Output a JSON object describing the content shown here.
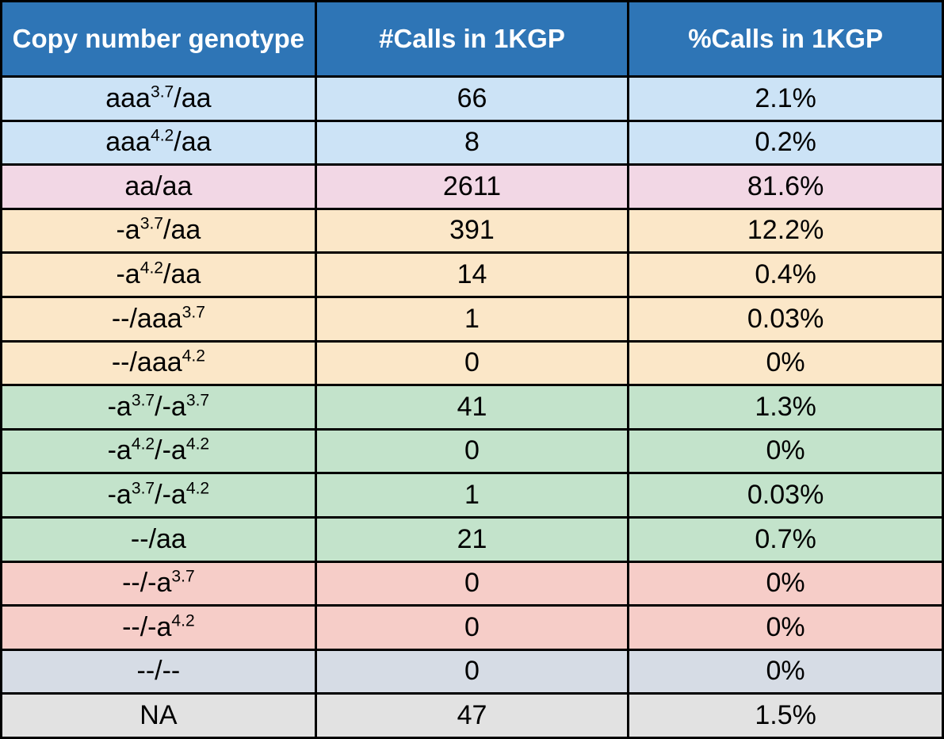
{
  "table": {
    "columns": [
      {
        "label": "Copy number genotype"
      },
      {
        "label": "#Calls in 1KGP"
      },
      {
        "label": "%Calls in 1KGP"
      }
    ],
    "header_bg": "#2E75B6",
    "header_text_color": "#FFFFFF",
    "border_color": "#000000",
    "row_colors": {
      "lightblue": "#CCE3F6",
      "pink": "#F2D7E5",
      "tan": "#FBE7C8",
      "green": "#C3E3CB",
      "salmon": "#F6CDC8",
      "bluegray": "#D6DCE5",
      "gray": "#E2E2E2"
    },
    "rows": [
      {
        "color": "lightblue",
        "genotype": [
          {
            "t": "aaa"
          },
          {
            "s": "3.7"
          },
          {
            "t": "/aa"
          }
        ],
        "calls": "66",
        "pct": "2.1%"
      },
      {
        "color": "lightblue",
        "genotype": [
          {
            "t": "aaa"
          },
          {
            "s": "4.2"
          },
          {
            "t": "/aa"
          }
        ],
        "calls": "8",
        "pct": "0.2%"
      },
      {
        "color": "pink",
        "genotype": [
          {
            "t": "aa/aa"
          }
        ],
        "calls": "2611",
        "pct": "81.6%"
      },
      {
        "color": "tan",
        "genotype": [
          {
            "t": "-a"
          },
          {
            "s": "3.7"
          },
          {
            "t": "/aa"
          }
        ],
        "calls": "391",
        "pct": "12.2%"
      },
      {
        "color": "tan",
        "genotype": [
          {
            "t": "-a"
          },
          {
            "s": "4.2"
          },
          {
            "t": "/aa"
          }
        ],
        "calls": "14",
        "pct": "0.4%"
      },
      {
        "color": "tan",
        "genotype": [
          {
            "t": "--/aaa"
          },
          {
            "s": "3.7"
          }
        ],
        "calls": "1",
        "pct": "0.03%"
      },
      {
        "color": "tan",
        "genotype": [
          {
            "t": "--/aaa"
          },
          {
            "s": "4.2"
          }
        ],
        "calls": "0",
        "pct": "0%"
      },
      {
        "color": "green",
        "genotype": [
          {
            "t": "-a"
          },
          {
            "s": "3.7"
          },
          {
            "t": "/-a"
          },
          {
            "s": "3.7"
          }
        ],
        "calls": "41",
        "pct": "1.3%"
      },
      {
        "color": "green",
        "genotype": [
          {
            "t": "-a"
          },
          {
            "s": "4.2"
          },
          {
            "t": "/-a"
          },
          {
            "s": "4.2"
          }
        ],
        "calls": "0",
        "pct": "0%"
      },
      {
        "color": "green",
        "genotype": [
          {
            "t": "-a"
          },
          {
            "s": "3.7"
          },
          {
            "t": "/-a"
          },
          {
            "s": "4.2"
          }
        ],
        "calls": "1",
        "pct": "0.03%"
      },
      {
        "color": "green",
        "genotype": [
          {
            "t": "--/aa"
          }
        ],
        "calls": "21",
        "pct": "0.7%"
      },
      {
        "color": "salmon",
        "genotype": [
          {
            "t": "--/-a"
          },
          {
            "s": "3.7"
          }
        ],
        "calls": "0",
        "pct": "0%"
      },
      {
        "color": "salmon",
        "genotype": [
          {
            "t": "--/-a"
          },
          {
            "s": "4.2"
          }
        ],
        "calls": "0",
        "pct": "0%"
      },
      {
        "color": "bluegray",
        "genotype": [
          {
            "t": "--/--"
          }
        ],
        "calls": "0",
        "pct": "0%"
      },
      {
        "color": "gray",
        "genotype": [
          {
            "t": "NA"
          }
        ],
        "calls": "47",
        "pct": "1.5%"
      }
    ]
  }
}
